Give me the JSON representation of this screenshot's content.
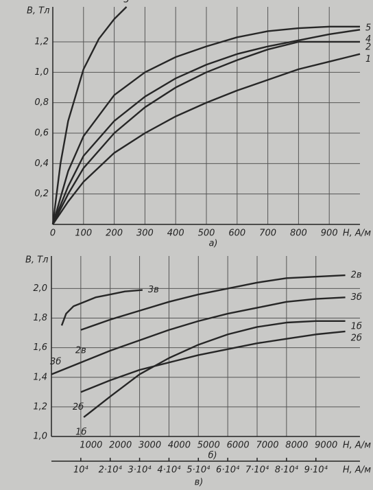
{
  "chart_data": [
    {
      "type": "line",
      "xlabel": "H, А/м",
      "ylabel": "В, Тл",
      "caption": "а)",
      "xlim": [
        0,
        1000
      ],
      "ylim": [
        0,
        1.43
      ],
      "xticks": [
        0,
        100,
        200,
        300,
        400,
        500,
        600,
        700,
        800,
        900
      ],
      "yticks": [
        {
          "value": 0.2,
          "label": "0,2"
        },
        {
          "value": 0.4,
          "label": "0,4"
        },
        {
          "value": 0.6,
          "label": "0,6"
        },
        {
          "value": 0.8,
          "label": "0,8"
        },
        {
          "value": 1.0,
          "label": "1,0"
        },
        {
          "value": 1.2,
          "label": "1,2"
        }
      ],
      "grid": true,
      "series": [
        {
          "name": "3",
          "color": "#262626",
          "x": [
            0,
            25,
            50,
            100,
            150,
            200,
            240
          ],
          "values": [
            0,
            0.4,
            0.68,
            1.02,
            1.22,
            1.35,
            1.43
          ]
        },
        {
          "name": "5",
          "color": "#262626",
          "x": [
            0,
            50,
            100,
            200,
            300,
            400,
            500,
            600,
            700,
            800,
            900,
            1000
          ],
          "values": [
            0,
            0.35,
            0.58,
            0.85,
            1.0,
            1.1,
            1.17,
            1.23,
            1.27,
            1.29,
            1.3,
            1.3
          ]
        },
        {
          "name": "4",
          "color": "#262626",
          "x": [
            0,
            50,
            100,
            200,
            300,
            400,
            500,
            600,
            700,
            800,
            900,
            1000
          ],
          "values": [
            0,
            0.25,
            0.45,
            0.68,
            0.84,
            0.96,
            1.05,
            1.12,
            1.17,
            1.21,
            1.25,
            1.28
          ]
        },
        {
          "name": "2",
          "color": "#262626",
          "x": [
            0,
            50,
            100,
            200,
            300,
            400,
            500,
            600,
            700,
            800,
            900,
            1000
          ],
          "values": [
            0,
            0.2,
            0.37,
            0.6,
            0.77,
            0.9,
            1.0,
            1.08,
            1.15,
            1.2,
            1.2,
            1.2
          ]
        },
        {
          "name": "1",
          "color": "#262626",
          "x": [
            0,
            50,
            100,
            200,
            300,
            400,
            500,
            600,
            700,
            800,
            900,
            1000
          ],
          "values": [
            0,
            0.15,
            0.28,
            0.47,
            0.6,
            0.71,
            0.8,
            0.88,
            0.95,
            1.02,
            1.07,
            1.12
          ]
        }
      ]
    },
    {
      "type": "line",
      "xlabel": "H, А/м",
      "ylabel": "В, Тл",
      "caption": "б)",
      "x2label": "H, А/м",
      "x2caption": "в)",
      "xlim": [
        0,
        10500
      ],
      "ylim": [
        1.0,
        2.22
      ],
      "x2lim": [
        0,
        105000
      ],
      "xticks": [
        1000,
        2000,
        3000,
        4000,
        5000,
        6000,
        7000,
        8000,
        9000
      ],
      "x2ticks": [
        {
          "value": 10000,
          "label": "10⁴"
        },
        {
          "value": 20000,
          "label": "2·10⁴"
        },
        {
          "value": 30000,
          "label": "3·10⁴"
        },
        {
          "value": 40000,
          "label": "4·10⁴"
        },
        {
          "value": 50000,
          "label": "5·10⁴"
        },
        {
          "value": 60000,
          "label": "6·10⁴"
        },
        {
          "value": 70000,
          "label": "7·10⁴"
        },
        {
          "value": 80000,
          "label": "8·10⁴"
        },
        {
          "value": 90000,
          "label": "9·10⁴"
        }
      ],
      "yticks": [
        {
          "value": 1.0,
          "label": "1,0"
        },
        {
          "value": 1.2,
          "label": "1,2"
        },
        {
          "value": 1.4,
          "label": "1,4"
        },
        {
          "value": 1.6,
          "label": "1,6"
        },
        {
          "value": 1.8,
          "label": "1,8"
        },
        {
          "value": 2.0,
          "label": "2,0"
        }
      ],
      "grid": true,
      "series": [
        {
          "name": "3в",
          "color": "#262626",
          "axis": "x2",
          "x": [
            3500,
            5000,
            7500,
            10000,
            15000,
            20000,
            25000,
            31000
          ],
          "values": [
            1.75,
            1.83,
            1.88,
            1.9,
            1.94,
            1.96,
            1.98,
            1.99
          ]
        },
        {
          "name": "2в",
          "color": "#262626",
          "axis": "x2",
          "x": [
            10000,
            20000,
            30000,
            40000,
            50000,
            60000,
            70000,
            80000,
            90000,
            100000
          ],
          "values": [
            1.72,
            1.79,
            1.85,
            1.91,
            1.96,
            2.0,
            2.04,
            2.07,
            2.08,
            2.09
          ]
        },
        {
          "name": "3б",
          "color": "#262626",
          "x": [
            0,
            1000,
            2000,
            3000,
            4000,
            5000,
            6000,
            7000,
            8000,
            9000,
            10000
          ],
          "values": [
            1.42,
            1.5,
            1.58,
            1.65,
            1.72,
            1.78,
            1.83,
            1.87,
            1.91,
            1.93,
            1.94
          ]
        },
        {
          "name": "1б",
          "color": "#262626",
          "x": [
            1100,
            2000,
            3000,
            4000,
            5000,
            6000,
            7000,
            8000,
            9000,
            10000
          ],
          "values": [
            1.13,
            1.27,
            1.42,
            1.53,
            1.62,
            1.69,
            1.74,
            1.77,
            1.78,
            1.78
          ]
        },
        {
          "name": "2б",
          "color": "#262626",
          "x": [
            1000,
            2000,
            3000,
            4000,
            5000,
            6000,
            7000,
            8000,
            9000,
            10000
          ],
          "values": [
            1.3,
            1.38,
            1.45,
            1.5,
            1.55,
            1.59,
            1.63,
            1.66,
            1.69,
            1.71
          ]
        }
      ]
    }
  ]
}
